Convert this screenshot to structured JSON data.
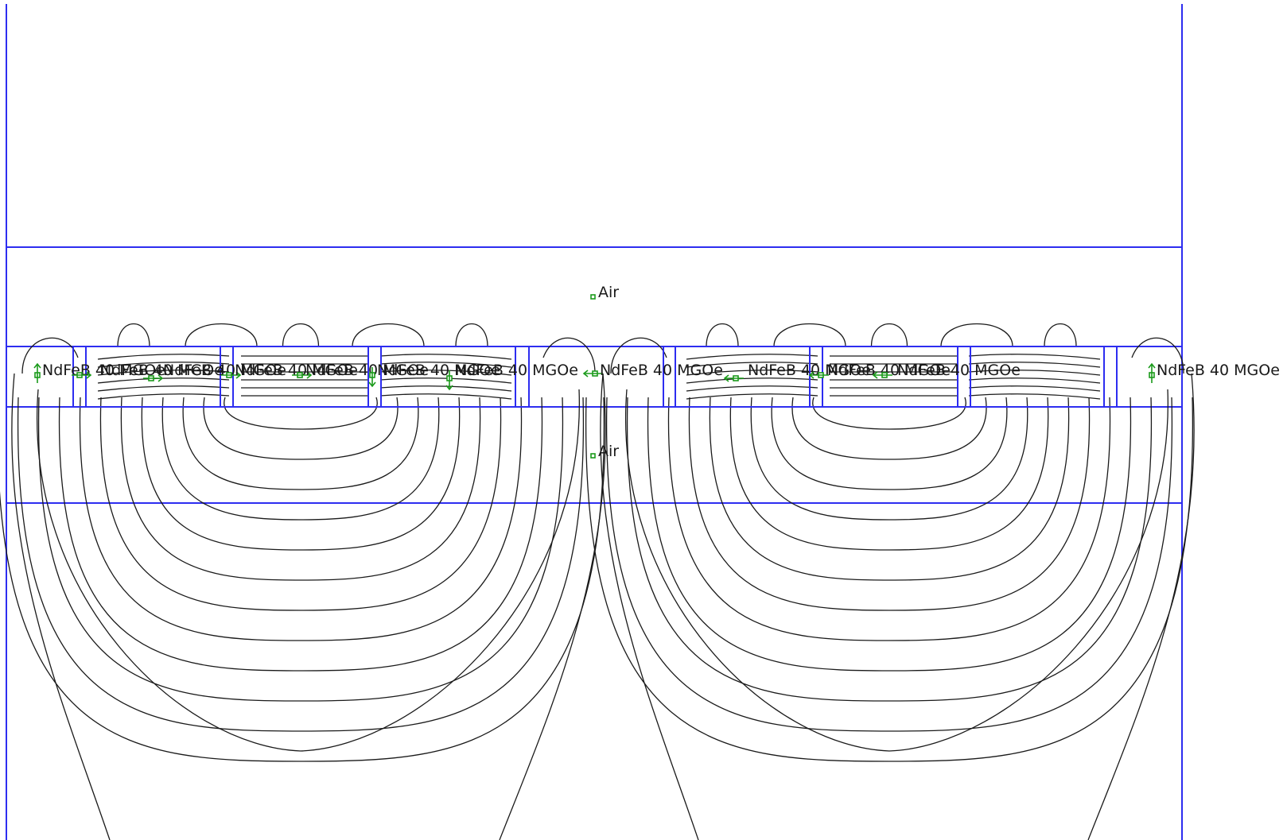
{
  "colors": {
    "boundary": "#2d2df0",
    "flux_lines": "#1a1a1a",
    "block_markers": "#1a9a1a",
    "background": "#ffffff"
  },
  "regions": [
    {
      "label": "Air",
      "kind": "air"
    },
    {
      "label": "Air",
      "kind": "air"
    }
  ],
  "magnets": [
    {
      "label": "NdFeB 40 MGOe",
      "magnetization": "up"
    },
    {
      "label": "NdFeB 40 MGOe",
      "magnetization": "right"
    },
    {
      "label": "NdFeB 40 MGOe",
      "magnetization": "right"
    },
    {
      "label": "NdFeB 40 MGOe",
      "magnetization": "right"
    },
    {
      "label": "NdFeB 40 MGOe",
      "magnetization": "right"
    },
    {
      "label": "NdFeB 40 MGOe",
      "magnetization": "down"
    },
    {
      "label": "NdFeB 40 MGOe",
      "magnetization": "down"
    },
    {
      "label": "NdFeB 40 MGOe",
      "magnetization": "left"
    },
    {
      "label": "NdFeB 40 MGOe",
      "magnetization": "left"
    },
    {
      "label": "NdFeB 40 MGOe",
      "magnetization": "left"
    },
    {
      "label": "NdFeB 40 MGOe",
      "magnetization": "left"
    },
    {
      "label": "NdFeB 40 MGOe",
      "magnetization": "up"
    }
  ]
}
